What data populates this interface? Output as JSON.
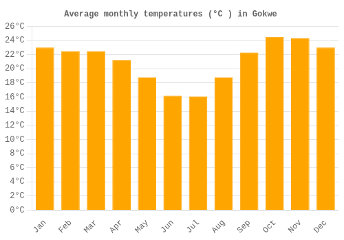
{
  "chart_data": {
    "type": "bar",
    "title": "Average monthly temperatures (°C ) in Gokwe",
    "categories": [
      "Jan",
      "Feb",
      "Mar",
      "Apr",
      "May",
      "Jun",
      "Jul",
      "Aug",
      "Sep",
      "Oct",
      "Nov",
      "Dec"
    ],
    "values": [
      23.0,
      22.5,
      22.5,
      21.2,
      18.8,
      16.2,
      16.1,
      18.8,
      22.3,
      24.5,
      24.3,
      23.0
    ],
    "color": "#FFA500",
    "ylim": [
      0,
      26
    ],
    "yticks": [
      {
        "value": 0,
        "label": "0°C"
      },
      {
        "value": 2,
        "label": "2°C"
      },
      {
        "value": 4,
        "label": "4°C"
      },
      {
        "value": 6,
        "label": "6°C"
      },
      {
        "value": 8,
        "label": "8°C"
      },
      {
        "value": 10,
        "label": "10°C"
      },
      {
        "value": 12,
        "label": "12°C"
      },
      {
        "value": 14,
        "label": "14°C"
      },
      {
        "value": 16,
        "label": "16°C"
      },
      {
        "value": 18,
        "label": "18°C"
      },
      {
        "value": 20,
        "label": "20°C"
      },
      {
        "value": 22,
        "label": "22°C"
      },
      {
        "value": 24,
        "label": "24°C"
      },
      {
        "value": 26,
        "label": "26°C"
      }
    ],
    "grid": true
  }
}
